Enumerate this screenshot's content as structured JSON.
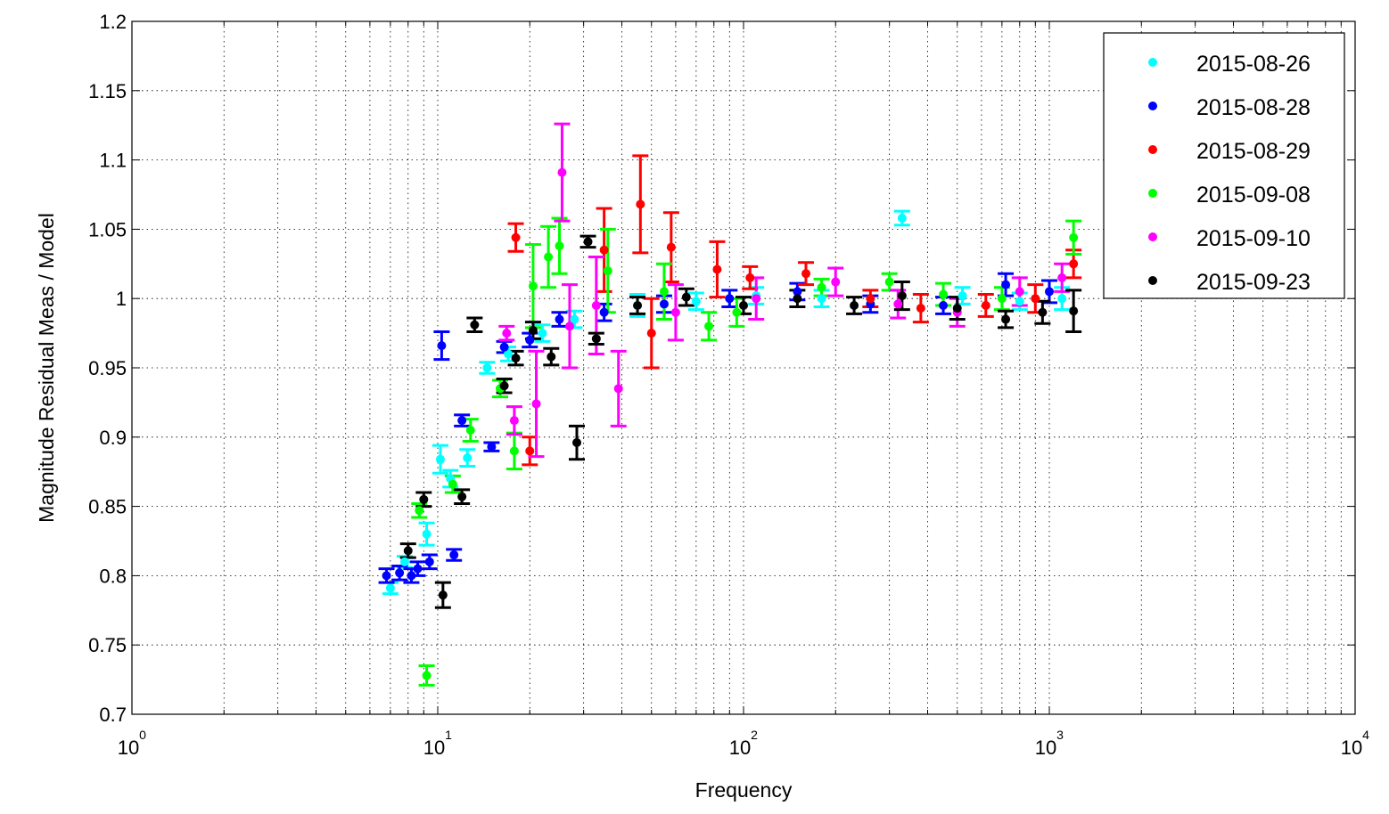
{
  "chart_data": {
    "type": "scatter",
    "title": "",
    "xlabel": "Frequency",
    "ylabel": "Magnitude Residual Meas / Model",
    "xscale": "log",
    "xlim": [
      1,
      10000
    ],
    "ylim": [
      0.7,
      1.2
    ],
    "x_ticks": [
      {
        "value": 1,
        "base": "10",
        "exp": "0"
      },
      {
        "value": 10,
        "base": "10",
        "exp": "1"
      },
      {
        "value": 100,
        "base": "10",
        "exp": "2"
      },
      {
        "value": 1000,
        "base": "10",
        "exp": "3"
      },
      {
        "value": 10000,
        "base": "10",
        "exp": "4"
      }
    ],
    "y_ticks": [
      {
        "value": 0.7,
        "label": "0.7"
      },
      {
        "value": 0.75,
        "label": "0.75"
      },
      {
        "value": 0.8,
        "label": "0.8"
      },
      {
        "value": 0.85,
        "label": "0.85"
      },
      {
        "value": 0.9,
        "label": "0.9"
      },
      {
        "value": 0.95,
        "label": "0.95"
      },
      {
        "value": 1.0,
        "label": "1"
      },
      {
        "value": 1.05,
        "label": "1.05"
      },
      {
        "value": 1.1,
        "label": "1.1"
      },
      {
        "value": 1.15,
        "label": "1.15"
      },
      {
        "value": 1.2,
        "label": "1.2"
      }
    ],
    "grid": true,
    "legend_position": "top-right",
    "series": [
      {
        "name": "2015-08-26",
        "color": "#00ffff",
        "points": [
          [
            7.0,
            0.791,
            0.004
          ],
          [
            7.8,
            0.81,
            0.004
          ],
          [
            9.2,
            0.83,
            0.008
          ],
          [
            10.2,
            0.884,
            0.01
          ],
          [
            11.0,
            0.87,
            0.006
          ],
          [
            12.5,
            0.885,
            0.006
          ],
          [
            14.5,
            0.95,
            0.004
          ],
          [
            17.0,
            0.96,
            0.005
          ],
          [
            22.0,
            0.975,
            0.006
          ],
          [
            28.0,
            0.985,
            0.006
          ],
          [
            45.0,
            0.995,
            0.008
          ],
          [
            70.0,
            0.998,
            0.006
          ],
          [
            110.0,
            1.002,
            0.006
          ],
          [
            180.0,
            1.0,
            0.006
          ],
          [
            330.0,
            1.058,
            0.005
          ],
          [
            520.0,
            1.002,
            0.006
          ],
          [
            800.0,
            0.998,
            0.006
          ],
          [
            1100.0,
            1.0,
            0.008
          ]
        ]
      },
      {
        "name": "2015-08-28",
        "color": "#0000ff",
        "points": [
          [
            6.8,
            0.8,
            0.005
          ],
          [
            7.5,
            0.802,
            0.005
          ],
          [
            8.2,
            0.8,
            0.005
          ],
          [
            8.6,
            0.805,
            0.005
          ],
          [
            9.4,
            0.81,
            0.005
          ],
          [
            10.3,
            0.966,
            0.01
          ],
          [
            11.3,
            0.815,
            0.004
          ],
          [
            12.0,
            0.912,
            0.004
          ],
          [
            15.0,
            0.893,
            0.003
          ],
          [
            16.5,
            0.965,
            0.004
          ],
          [
            20.0,
            0.97,
            0.005
          ],
          [
            25.0,
            0.985,
            0.005
          ],
          [
            35.0,
            0.99,
            0.006
          ],
          [
            55.0,
            0.996,
            0.006
          ],
          [
            90.0,
            1.0,
            0.006
          ],
          [
            150.0,
            1.005,
            0.006
          ],
          [
            260.0,
            0.996,
            0.006
          ],
          [
            450.0,
            0.995,
            0.006
          ],
          [
            720.0,
            1.01,
            0.008
          ],
          [
            1000.0,
            1.005,
            0.008
          ]
        ]
      },
      {
        "name": "2015-08-29",
        "color": "#ff0000",
        "points": [
          [
            18.0,
            1.044,
            0.01
          ],
          [
            20.0,
            0.89,
            0.01
          ],
          [
            35.0,
            1.035,
            0.03
          ],
          [
            46.0,
            1.068,
            0.035
          ],
          [
            50.0,
            0.975,
            0.025
          ],
          [
            58.0,
            1.037,
            0.025
          ],
          [
            82.0,
            1.021,
            0.02
          ],
          [
            105.0,
            1.015,
            0.008
          ],
          [
            160.0,
            1.018,
            0.008
          ],
          [
            260.0,
            1.0,
            0.006
          ],
          [
            380.0,
            0.993,
            0.01
          ],
          [
            620.0,
            0.995,
            0.008
          ],
          [
            900.0,
            1.0,
            0.01
          ],
          [
            1200.0,
            1.025,
            0.01
          ]
        ]
      },
      {
        "name": "2015-09-08",
        "color": "#00ff00",
        "points": [
          [
            8.7,
            0.847,
            0.005
          ],
          [
            9.2,
            0.728,
            0.007
          ],
          [
            11.2,
            0.866,
            0.006
          ],
          [
            12.8,
            0.905,
            0.008
          ],
          [
            16.0,
            0.935,
            0.006
          ],
          [
            17.8,
            0.89,
            0.013
          ],
          [
            20.5,
            1.009,
            0.03
          ],
          [
            23.0,
            1.03,
            0.022
          ],
          [
            25.0,
            1.038,
            0.02
          ],
          [
            36.0,
            1.02,
            0.03
          ],
          [
            55.0,
            1.005,
            0.02
          ],
          [
            77.0,
            0.98,
            0.01
          ],
          [
            95.0,
            0.99,
            0.01
          ],
          [
            180.0,
            1.008,
            0.006
          ],
          [
            300.0,
            1.012,
            0.006
          ],
          [
            450.0,
            1.003,
            0.008
          ],
          [
            700.0,
            1.0,
            0.008
          ],
          [
            1200.0,
            1.044,
            0.012
          ]
        ]
      },
      {
        "name": "2015-09-10",
        "color": "#ff00ff",
        "points": [
          [
            16.8,
            0.975,
            0.005
          ],
          [
            17.8,
            0.912,
            0.01
          ],
          [
            21.0,
            0.924,
            0.038
          ],
          [
            25.5,
            1.091,
            0.035
          ],
          [
            27.0,
            0.98,
            0.03
          ],
          [
            33.0,
            0.995,
            0.035
          ],
          [
            39.0,
            0.935,
            0.027
          ],
          [
            60.0,
            0.99,
            0.02
          ],
          [
            110.0,
            1.0,
            0.015
          ],
          [
            200.0,
            1.012,
            0.01
          ],
          [
            320.0,
            0.996,
            0.01
          ],
          [
            500.0,
            0.99,
            0.01
          ],
          [
            800.0,
            1.005,
            0.01
          ],
          [
            1100.0,
            1.015,
            0.01
          ]
        ]
      },
      {
        "name": "2015-09-23",
        "color": "#000000",
        "points": [
          [
            8.0,
            0.818,
            0.005
          ],
          [
            9.0,
            0.855,
            0.005
          ],
          [
            10.4,
            0.786,
            0.009
          ],
          [
            12.0,
            0.857,
            0.005
          ],
          [
            13.2,
            0.981,
            0.005
          ],
          [
            16.5,
            0.937,
            0.005
          ],
          [
            18.0,
            0.957,
            0.005
          ],
          [
            20.5,
            0.977,
            0.006
          ],
          [
            23.5,
            0.958,
            0.006
          ],
          [
            28.5,
            0.896,
            0.012
          ],
          [
            31.0,
            1.041,
            0.004
          ],
          [
            33.0,
            0.971,
            0.004
          ],
          [
            45.0,
            0.995,
            0.006
          ],
          [
            65.0,
            1.001,
            0.006
          ],
          [
            100.0,
            0.995,
            0.006
          ],
          [
            150.0,
            1.0,
            0.006
          ],
          [
            230.0,
            0.995,
            0.006
          ],
          [
            330.0,
            1.002,
            0.01
          ],
          [
            500.0,
            0.993,
            0.008
          ],
          [
            720.0,
            0.985,
            0.006
          ],
          [
            950.0,
            0.99,
            0.008
          ],
          [
            1200.0,
            0.991,
            0.015
          ]
        ]
      }
    ]
  }
}
